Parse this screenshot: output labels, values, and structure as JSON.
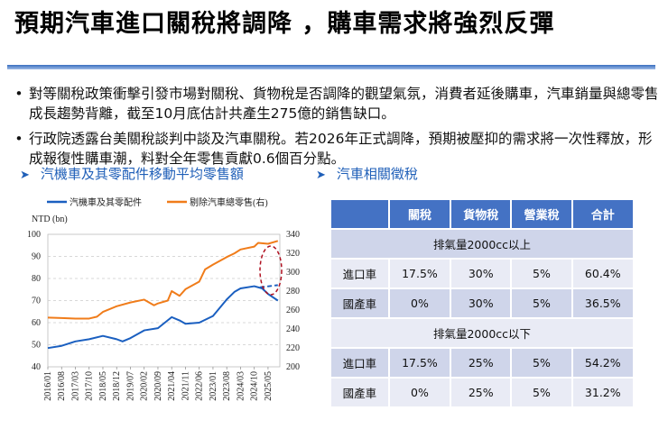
{
  "title": "預期汽車進口關稅將調降 ，購車需求將強烈反彈",
  "bullets": [
    "對等關稅政策衝擊引發市場對關稅、貨物稅是否調降的觀望氣氛，消費者延後購車，汽車銷量與總零售成長趨勢背離，截至10月底估計共產生275億的銷售缺口。",
    "行政院透露台美關稅談判中談及汽車關稅。若2026年正式調降，預期被壓抑的需求將一次性釋放，形成報復性購車潮，料對全年零售貢獻0.6個百分點。"
  ],
  "chart_section_title": "汽機車及其零配件移動平均零售額",
  "table_section_title": "汽車相關徵稅",
  "icons": {
    "bullet": "bullet-dot-icon",
    "section": "arrowhead-icon"
  },
  "colors": {
    "accent": "#1f5fb8",
    "blue_series": "#1a5fc0",
    "orange_series": "#f07c1a",
    "highlight": "#b01020",
    "table_header": "#4472c4"
  },
  "chart_data": {
    "type": "line",
    "ylabel": "NTD (bn)",
    "ylim_left": [
      40,
      100
    ],
    "ylim_right": [
      200,
      340
    ],
    "yticks_left": [
      40,
      50,
      60,
      70,
      80,
      90,
      100
    ],
    "yticks_right": [
      200,
      220,
      240,
      260,
      280,
      300,
      320,
      340
    ],
    "xticks": [
      "2016/01",
      "2016/08",
      "2017/03",
      "2017/10",
      "2018/05",
      "2018/12",
      "2019/07",
      "2020/02",
      "2020/09",
      "2021/04",
      "2021/11",
      "2022/06",
      "2023/01",
      "2023/08",
      "2024/03",
      "2024/10",
      "2025/05"
    ],
    "grid": "horizontal dashed",
    "legend": "top",
    "series": [
      {
        "name": "汽機車及其零配件",
        "axis": "left",
        "color": "#1a5fc0",
        "x": [
          "2016/01",
          "2016/08",
          "2017/03",
          "2017/10",
          "2018/05",
          "2018/12",
          "2019/03",
          "2019/07",
          "2020/02",
          "2020/09",
          "2021/04",
          "2021/08",
          "2021/11",
          "2022/06",
          "2023/01",
          "2023/08",
          "2023/12",
          "2024/03",
          "2024/10",
          "2025/02",
          "2025/05",
          "2025/10"
        ],
        "y": [
          48.5,
          49.5,
          51.5,
          52.5,
          54,
          52.5,
          51.5,
          53,
          56.5,
          57.5,
          62.5,
          61,
          59.5,
          60,
          63,
          70.5,
          74,
          75.5,
          76.5,
          75.5,
          73,
          70
        ]
      },
      {
        "name": "剔除汽車總零售(右)",
        "axis": "right",
        "color": "#f07c1a",
        "x": [
          "2016/01",
          "2016/08",
          "2017/03",
          "2017/10",
          "2018/02",
          "2018/05",
          "2018/12",
          "2019/07",
          "2020/02",
          "2020/07",
          "2020/09",
          "2021/02",
          "2021/04",
          "2021/08",
          "2021/11",
          "2022/06",
          "2022/09",
          "2023/01",
          "2023/08",
          "2023/12",
          "2024/03",
          "2024/10",
          "2024/12",
          "2025/05",
          "2025/10"
        ],
        "y": [
          252,
          251.5,
          251,
          251,
          253,
          258,
          264,
          268,
          271,
          265,
          267,
          270,
          280,
          275,
          282,
          290,
          303,
          308,
          316,
          320,
          324,
          327,
          331,
          330,
          333
        ]
      }
    ],
    "annotations": [
      {
        "type": "dashed-trend",
        "axis": "left",
        "x": [
          "2025/01",
          "2025/10"
        ],
        "y": [
          76,
          77
        ]
      },
      {
        "type": "dashed-ellipse",
        "around": "2025/01–2025/10"
      }
    ]
  },
  "table": {
    "headers": [
      "",
      "關稅",
      "貨物稅",
      "營業稅",
      "合計"
    ],
    "groups": [
      {
        "label": "排氣量2000cc以上",
        "rows": [
          [
            "進口車",
            "17.5%",
            "30%",
            "5%",
            "60.4%"
          ],
          [
            "國產車",
            "0%",
            "30%",
            "5%",
            "36.5%"
          ]
        ]
      },
      {
        "label": "排氣量2000cc以下",
        "rows": [
          [
            "進口車",
            "17.5%",
            "25%",
            "5%",
            "54.2%"
          ],
          [
            "國產車",
            "0%",
            "25%",
            "5%",
            "31.2%"
          ]
        ]
      }
    ]
  }
}
